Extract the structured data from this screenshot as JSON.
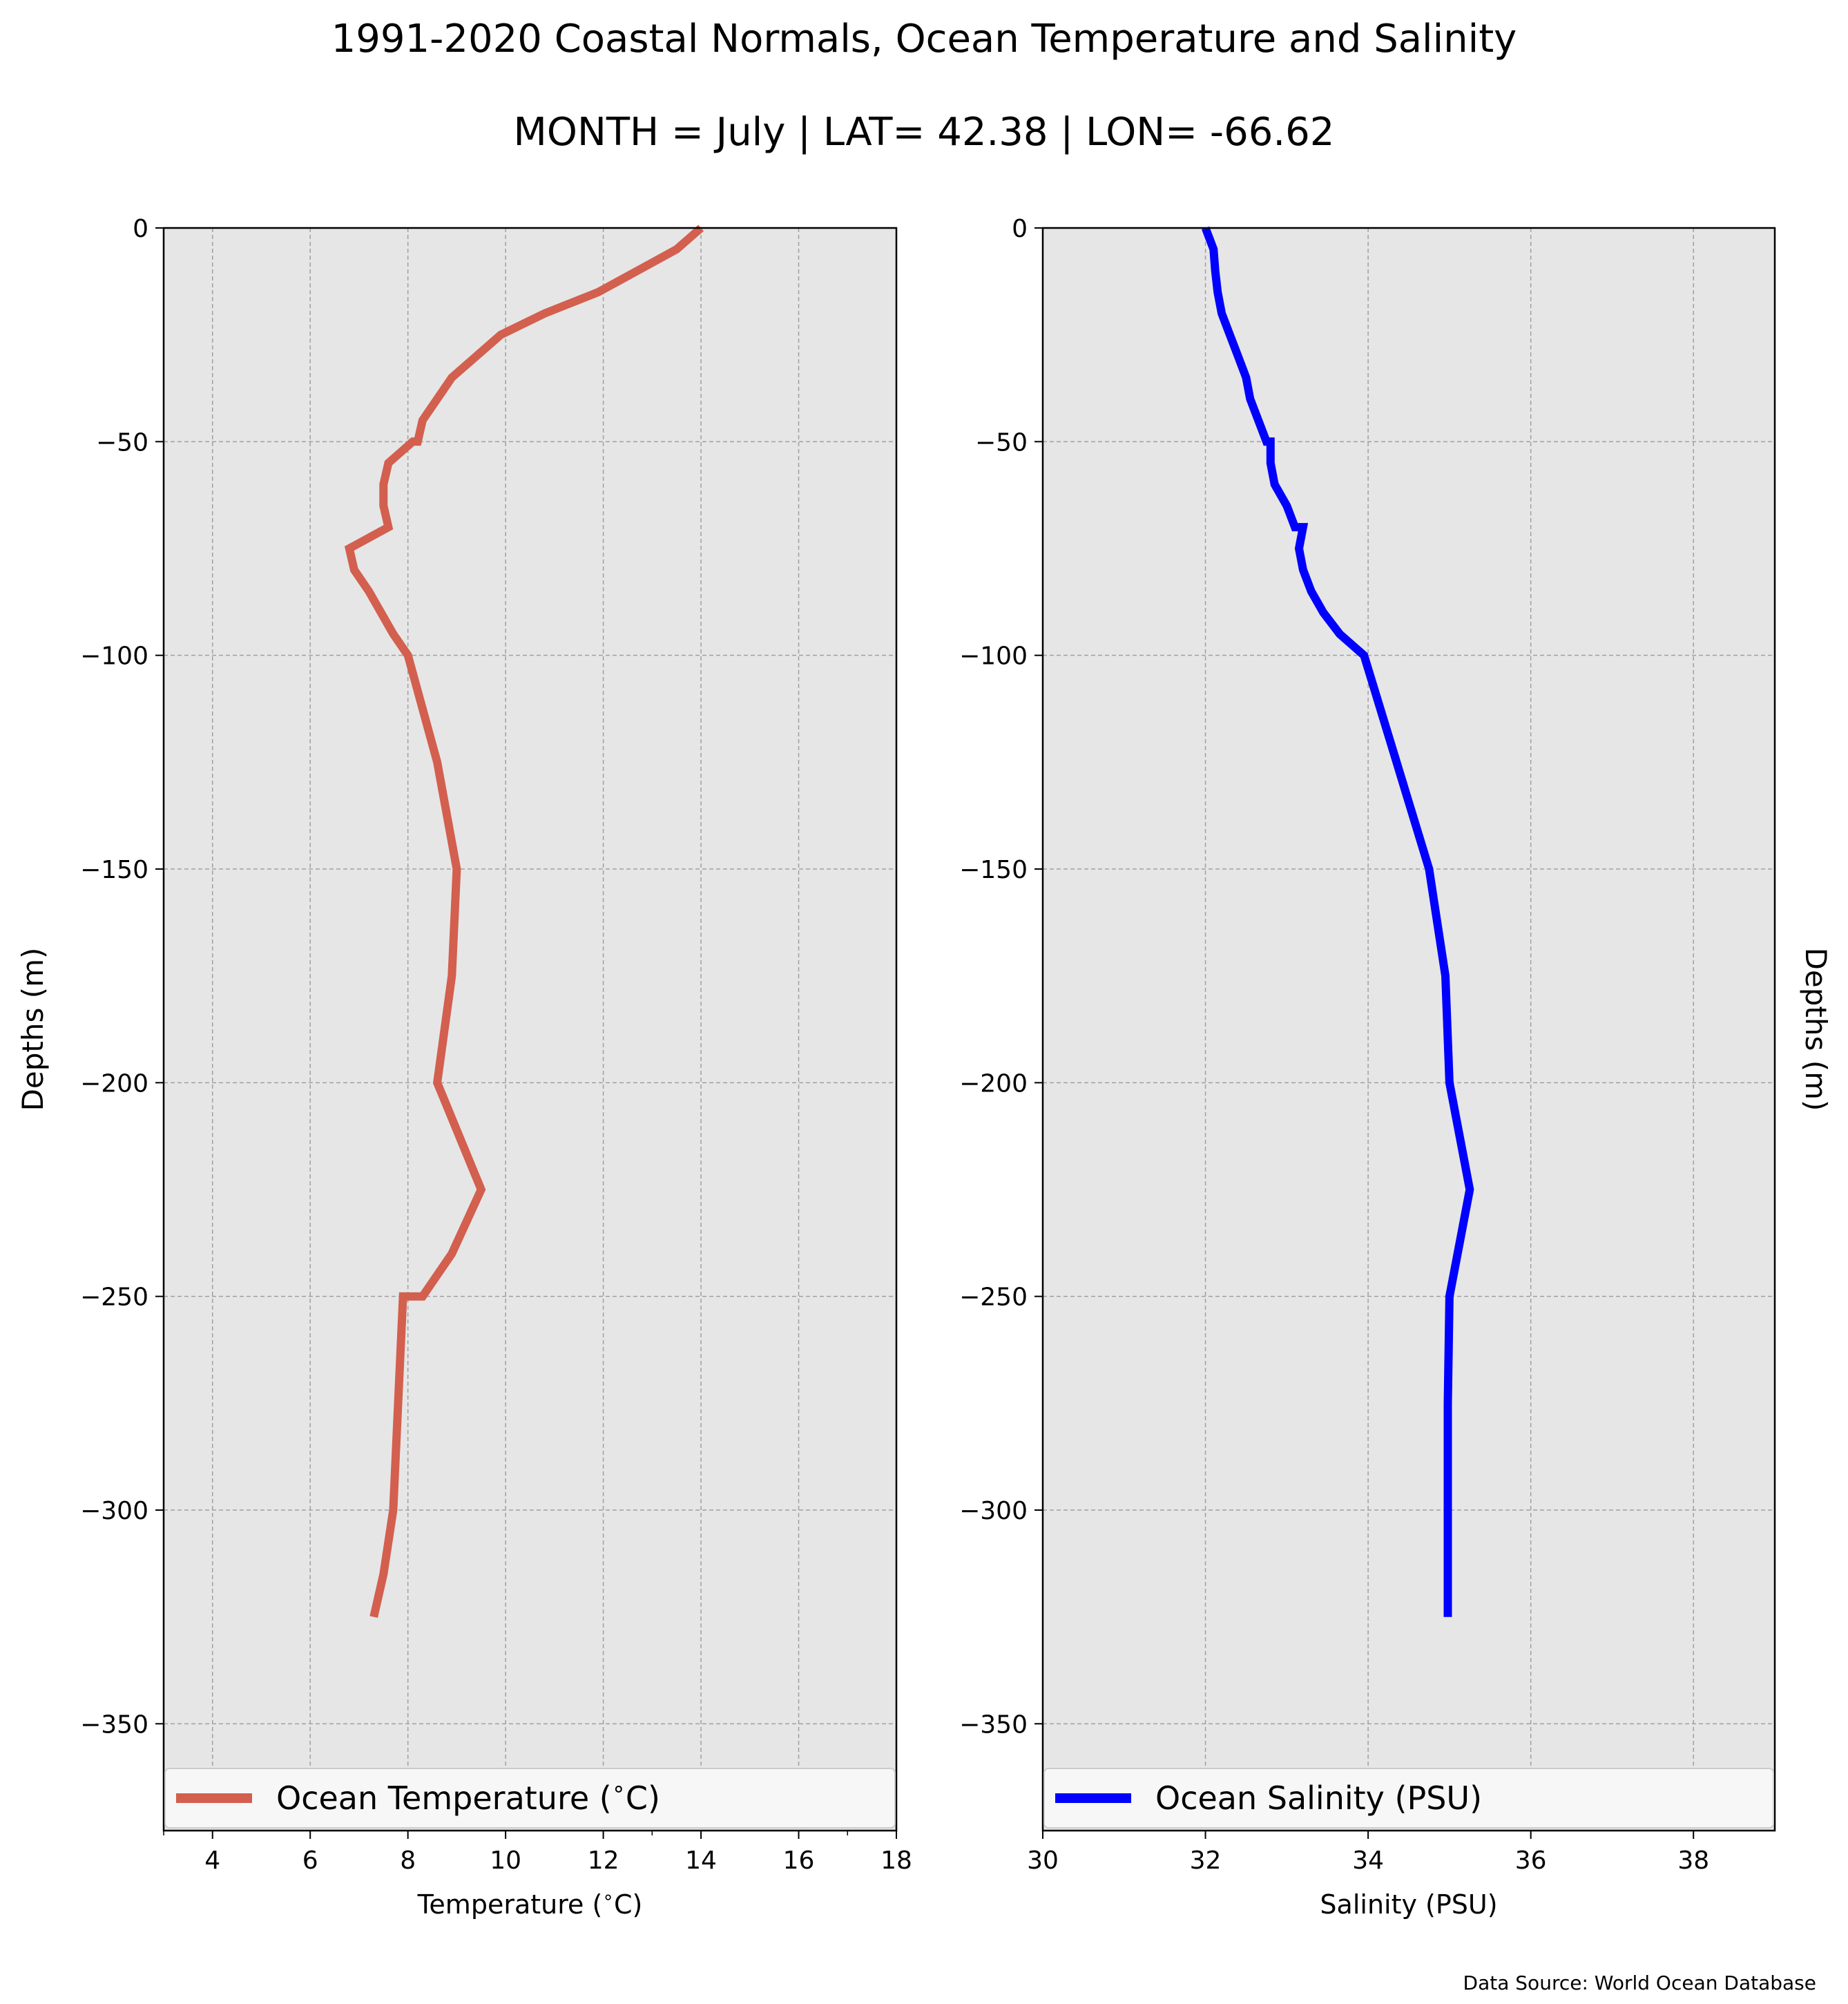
{
  "title": "1991-2020 Coastal Normals, Ocean Temperature and Salinity",
  "subtitle": "MONTH = July | LAT= 42.38 | LON= -66.62",
  "source": "Data Source: World Ocean Database",
  "colors": {
    "panel_bg": "#e6e6e6",
    "grid": "#a0a0a0",
    "temperature": "#d35f4f",
    "salinity": "#0000ff"
  },
  "chart_data": [
    {
      "type": "line",
      "xlabel": "Temperature ($^\\circ$C)",
      "ylabel": "Depths (m)",
      "xlim": [
        3,
        18
      ],
      "ylim": [
        -375,
        0
      ],
      "xticks": [
        4,
        6,
        8,
        10,
        12,
        14,
        16,
        18
      ],
      "xtick_labels": [
        "4",
        "6",
        "8",
        "10",
        "12",
        "14",
        "16",
        "18"
      ],
      "yticks": [
        0,
        -50,
        -100,
        -150,
        -200,
        -250,
        -300,
        -350
      ],
      "ytick_labels": [
        "0",
        "−50",
        "−100",
        "−150",
        "−200",
        "−250",
        "−300",
        "−350"
      ],
      "grid": true,
      "legend_position": "bottom",
      "series": [
        {
          "name": "Ocean Temperature ($^\\circ$C)",
          "color": "#d35f4f",
          "x": [
            14.0,
            13.5,
            12.7,
            11.9,
            10.8,
            9.9,
            9.4,
            8.9,
            8.6,
            8.3,
            8.2,
            8.1,
            7.6,
            7.5,
            7.5,
            7.6,
            6.8,
            6.9,
            7.2,
            7.7,
            8.0,
            8.6,
            9.0,
            8.9,
            8.6,
            9.5,
            8.9,
            8.3,
            7.9,
            7.8,
            7.7,
            7.5,
            7.3
          ],
          "y": [
            0,
            -5,
            -10,
            -15,
            -20,
            -25,
            -30,
            -35,
            -40,
            -45,
            -50,
            -50,
            -55,
            -60,
            -65,
            -70,
            -75,
            -80,
            -85,
            -95,
            -100,
            -125,
            -150,
            -175,
            -200,
            -225,
            -240,
            -250,
            -250,
            -275,
            -300,
            -315,
            -325
          ]
        }
      ]
    },
    {
      "type": "line",
      "xlabel": "Salinity (PSU)",
      "ylabel": "Depths (m)",
      "xlim": [
        30,
        39
      ],
      "ylim": [
        -375,
        0
      ],
      "xticks": [
        30,
        32,
        34,
        36,
        38
      ],
      "xtick_labels": [
        "30",
        "32",
        "34",
        "36",
        "38"
      ],
      "yticks": [
        0,
        -50,
        -100,
        -150,
        -200,
        -250,
        -300,
        -350
      ],
      "ytick_labels": [
        "0",
        "−50",
        "−100",
        "−150",
        "−200",
        "−250",
        "−300",
        "−350"
      ],
      "grid": true,
      "legend_position": "bottom",
      "series": [
        {
          "name": "Ocean Salinity (PSU)",
          "color": "#0000ff",
          "x": [
            32.0,
            32.1,
            32.12,
            32.15,
            32.2,
            32.3,
            32.4,
            32.5,
            32.55,
            32.65,
            32.75,
            32.8,
            32.8,
            32.85,
            33.0,
            33.1,
            33.2,
            33.15,
            33.2,
            33.3,
            33.45,
            33.65,
            33.95,
            34.35,
            34.75,
            34.95,
            35.0,
            35.25,
            35.0,
            34.98,
            34.98,
            34.98,
            34.98
          ],
          "y": [
            0,
            -5,
            -10,
            -15,
            -20,
            -25,
            -30,
            -35,
            -40,
            -45,
            -50,
            -50,
            -55,
            -60,
            -65,
            -70,
            -70,
            -75,
            -80,
            -85,
            -90,
            -95,
            -100,
            -125,
            -150,
            -175,
            -200,
            -225,
            -250,
            -275,
            -300,
            -315,
            -325
          ]
        }
      ]
    }
  ]
}
